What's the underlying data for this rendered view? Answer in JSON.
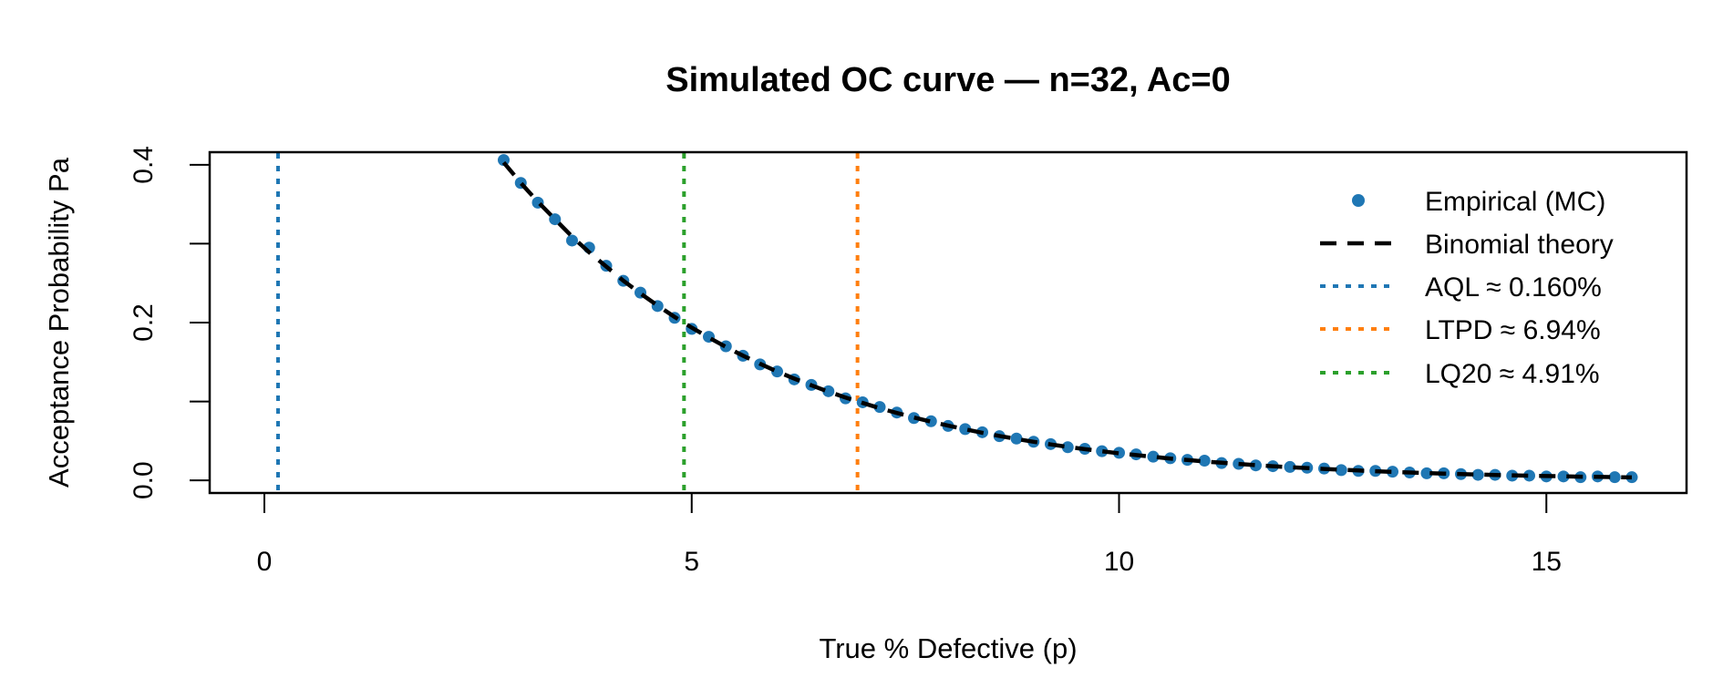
{
  "chart_data": {
    "type": "line",
    "title": "Simulated OC curve — n=32, Ac=0",
    "xlabel": "True % Defective (p)",
    "ylabel": "Acceptance Probability Pa",
    "xlim": [
      0,
      16
    ],
    "ylim": [
      0,
      0.4
    ],
    "xticks": [
      "0",
      "5",
      "10",
      "15"
    ],
    "xtick_values": [
      0,
      5,
      10,
      15
    ],
    "yticks": [
      "0.0",
      "0.2",
      "0.4"
    ],
    "ytick_values": [
      0,
      0.1,
      0.2,
      0.3,
      0.4
    ],
    "ytick_labeled": [
      0,
      0.2,
      0.4
    ],
    "grid": false,
    "legend_position": "top-right",
    "x": [
      2.8,
      3.0,
      3.2,
      3.4,
      3.6,
      3.8,
      4.0,
      4.2,
      4.4,
      4.6,
      4.8,
      5.0,
      5.2,
      5.4,
      5.6,
      5.8,
      6.0,
      6.2,
      6.4,
      6.6,
      6.8,
      7.0,
      7.2,
      7.4,
      7.6,
      7.8,
      8.0,
      8.2,
      8.4,
      8.6,
      8.8,
      9.0,
      9.2,
      9.4,
      9.6,
      9.8,
      10.0,
      10.2,
      10.4,
      10.6,
      10.8,
      11.0,
      11.2,
      11.4,
      11.6,
      11.8,
      12.0,
      12.2,
      12.4,
      12.6,
      12.8,
      13.0,
      13.2,
      13.4,
      13.6,
      13.8,
      14.0,
      14.2,
      14.4,
      14.6,
      14.8,
      15.0,
      15.2,
      15.4,
      15.6,
      15.8,
      16.0
    ],
    "series": [
      {
        "name": "Empirical (MC)",
        "style": "points",
        "color": "#1f77b4",
        "values": [
          0.406,
          0.377,
          0.352,
          0.331,
          0.304,
          0.295,
          0.272,
          0.253,
          0.238,
          0.221,
          0.206,
          0.192,
          0.182,
          0.17,
          0.158,
          0.147,
          0.138,
          0.128,
          0.121,
          0.113,
          0.104,
          0.099,
          0.093,
          0.086,
          0.079,
          0.075,
          0.069,
          0.065,
          0.061,
          0.056,
          0.053,
          0.049,
          0.046,
          0.042,
          0.04,
          0.037,
          0.035,
          0.033,
          0.03,
          0.028,
          0.026,
          0.025,
          0.022,
          0.021,
          0.019,
          0.018,
          0.017,
          0.016,
          0.015,
          0.013,
          0.012,
          0.012,
          0.011,
          0.01,
          0.009,
          0.009,
          0.008,
          0.007,
          0.007,
          0.006,
          0.006,
          0.005,
          0.005,
          0.004,
          0.005,
          0.004,
          0.004
        ]
      },
      {
        "name": "Binomial theory",
        "style": "dashed",
        "color": "#000000",
        "values": [
          0.403,
          0.377,
          0.353,
          0.331,
          0.309,
          0.289,
          0.271,
          0.253,
          0.237,
          0.2216,
          0.2072,
          0.1937,
          0.1811,
          0.1692,
          0.1581,
          0.1478,
          0.138,
          0.129,
          0.1205,
          0.1125,
          0.105,
          0.0981,
          0.0915,
          0.0854,
          0.0797,
          0.0744,
          0.0694,
          0.0647,
          0.0603,
          0.0563,
          0.0525,
          0.0489,
          0.0456,
          0.0425,
          0.0396,
          0.0369,
          0.0343,
          0.032,
          0.0298,
          0.0277,
          0.0258,
          0.024,
          0.0223,
          0.0208,
          0.0193,
          0.018,
          0.0167,
          0.0156,
          0.0145,
          0.0134,
          0.0125,
          0.0116,
          0.0108,
          0.01,
          0.0093,
          0.0086,
          0.008,
          0.0074,
          0.0069,
          0.0064,
          0.0059,
          0.0055,
          0.0051,
          0.0047,
          0.0044,
          0.0041,
          0.0038
        ]
      }
    ],
    "vlines": [
      {
        "name": "AQL ≈ 0.160%",
        "x": 0.16,
        "color": "#1f77b4",
        "style": "dotted"
      },
      {
        "name": "LTPD ≈ 6.94%",
        "x": 6.94,
        "color": "#ff7f0e",
        "style": "dotted"
      },
      {
        "name": "LQ20 ≈ 4.91%",
        "x": 4.91,
        "color": "#2ca02c",
        "style": "dotted"
      }
    ],
    "legend": [
      "Empirical (MC)",
      "Binomial theory",
      "AQL ≈ 0.160%",
      "LTPD ≈ 6.94%",
      "LQ20 ≈ 4.91%"
    ]
  }
}
